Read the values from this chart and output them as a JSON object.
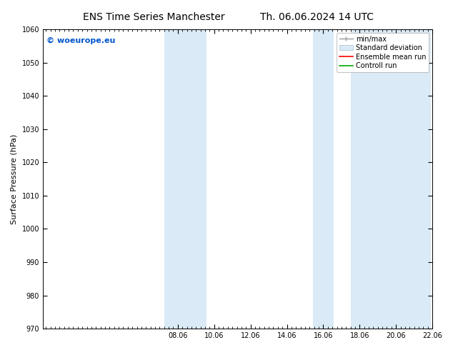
{
  "title_left": "ENS Time Series Manchester",
  "title_right": "Th. 06.06.2024 14 UTC",
  "ylabel": "Surface Pressure (hPa)",
  "ylim": [
    970,
    1060
  ],
  "yticks": [
    970,
    980,
    990,
    1000,
    1010,
    1020,
    1030,
    1040,
    1050,
    1060
  ],
  "xtick_labels": [
    "08.06",
    "10.06",
    "12.06",
    "14.06",
    "16.06",
    "18.06",
    "20.06",
    "22.06"
  ],
  "shade_color": "#daeaf7",
  "background_color": "#ffffff",
  "watermark_text": "© woeurope.eu",
  "watermark_color": "#0055cc",
  "legend_items": [
    {
      "label": "min/max",
      "color": "#aaaaaa"
    },
    {
      "label": "Standard deviation",
      "color": "#bbccdd"
    },
    {
      "label": "Ensemble mean run",
      "color": "#ff0000"
    },
    {
      "label": "Controll run",
      "color": "#00aa00"
    }
  ],
  "title_fontsize": 10,
  "ylabel_fontsize": 8,
  "tick_fontsize": 7,
  "legend_fontsize": 7,
  "watermark_fontsize": 8
}
